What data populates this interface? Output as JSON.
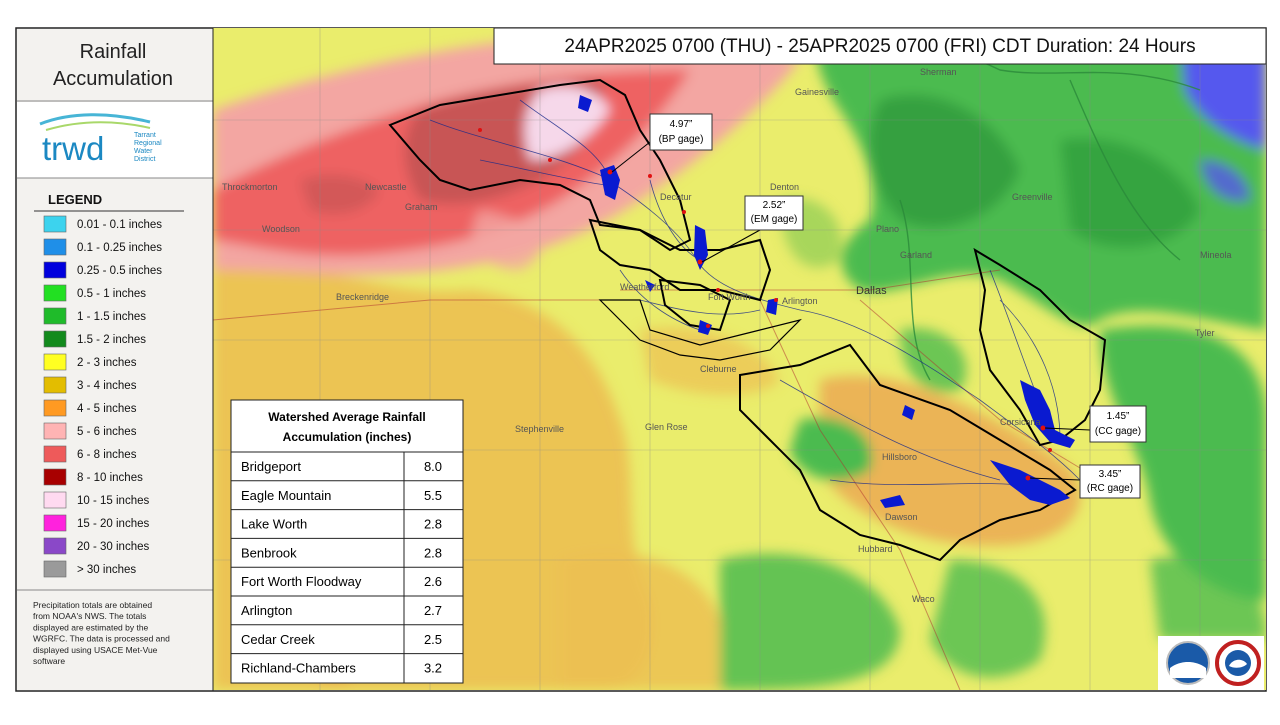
{
  "sidebar": {
    "title_lines": [
      "Rainfall",
      "Accumulation"
    ],
    "logo": {
      "name": "trwd",
      "org_lines": [
        "Tarrant",
        "Regional",
        "Water",
        "District"
      ]
    },
    "legend_title": "LEGEND",
    "legend": [
      {
        "label": "0.01 - 0.1 inches",
        "color": "#3cd3ee"
      },
      {
        "label": "0.1 - 0.25 inches",
        "color": "#1f8fe8"
      },
      {
        "label": "0.25 - 0.5 inches",
        "color": "#0000dd"
      },
      {
        "label": "0.5 - 1 inches",
        "color": "#22e022"
      },
      {
        "label": "1 - 1.5 inches",
        "color": "#1fbb2a"
      },
      {
        "label": "1.5 - 2 inches",
        "color": "#128a1c"
      },
      {
        "label": "2 - 3 inches",
        "color": "#ffff22"
      },
      {
        "label": "3 - 4 inches",
        "color": "#e3bd00"
      },
      {
        "label": "4 - 5 inches",
        "color": "#ff9a22"
      },
      {
        "label": "5 - 6 inches",
        "color": "#ffb4b4"
      },
      {
        "label": "6 - 8 inches",
        "color": "#ee5a5a"
      },
      {
        "label": "8 - 10 inches",
        "color": "#a80000"
      },
      {
        "label": "10 - 15 inches",
        "color": "#ffdaf0"
      },
      {
        "label": "15 - 20 inches",
        "color": "#ff22dd"
      },
      {
        "label": "20 - 30 inches",
        "color": "#8a48c8"
      },
      {
        "label": "> 30 inches",
        "color": "#9a9a9a"
      }
    ],
    "note_lines": [
      "Precipitation totals are obtained",
      "from NOAA's NWS.  The totals",
      "displayed are estimated by the",
      "WGRFC.  The data is processed and",
      "displayed using USACE Met-Vue",
      "software"
    ]
  },
  "header": {
    "title": "24APR2025 0700 (THU) - 25APR2025 0700 (FRI) CDT Duration: 24 Hours"
  },
  "table": {
    "title_lines": [
      "Watershed Average Rainfall",
      "Accumulation (inches)"
    ],
    "rows": [
      [
        "Bridgeport",
        "8.0"
      ],
      [
        "Eagle Mountain",
        "5.5"
      ],
      [
        "Lake Worth",
        "2.8"
      ],
      [
        "Benbrook",
        "2.8"
      ],
      [
        "Fort Worth Floodway",
        "2.6"
      ],
      [
        "Arlington",
        "2.7"
      ],
      [
        "Cedar Creek",
        "2.5"
      ],
      [
        "Richland-Chambers",
        "3.2"
      ]
    ]
  },
  "callouts": [
    {
      "value": "4.97”",
      "gage": "(BP gage)"
    },
    {
      "value": "2.52”",
      "gage": "(EM gage)"
    },
    {
      "value": "1.45”",
      "gage": "(CC gage)"
    },
    {
      "value": "3.45”",
      "gage": "(RC gage)"
    }
  ],
  "places": [
    "Dallas",
    "Garland",
    "Plano",
    "Arlington",
    "Fort Worth",
    "Waco",
    "Graham",
    "Throckmorton",
    "Newcastle",
    "Woodson",
    "Breckenridge",
    "Stephenville",
    "Glen Rose",
    "Hillsboro",
    "Corsicana",
    "Greenville",
    "Mineola",
    "Tyler",
    "Sherman",
    "Gainesville",
    "Decatur",
    "Denton",
    "Weatherford",
    "Cleburne",
    "Dawson",
    "Hubbard"
  ]
}
